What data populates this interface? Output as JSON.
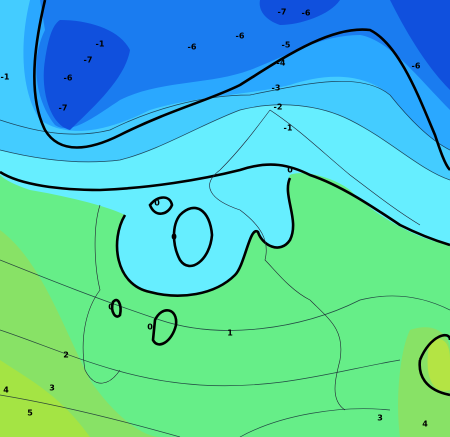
{
  "map": {
    "contour_labels": [
      "-7",
      "-6",
      "-6",
      "-6",
      "-5",
      "-4",
      "-3",
      "-2",
      "-1",
      "0",
      "-1",
      "-7",
      "-6",
      "-7",
      "-6",
      "-1",
      "0",
      "0",
      "0",
      "0",
      "1",
      "2",
      "3",
      "4",
      "5",
      "3",
      "4"
    ]
  }
}
